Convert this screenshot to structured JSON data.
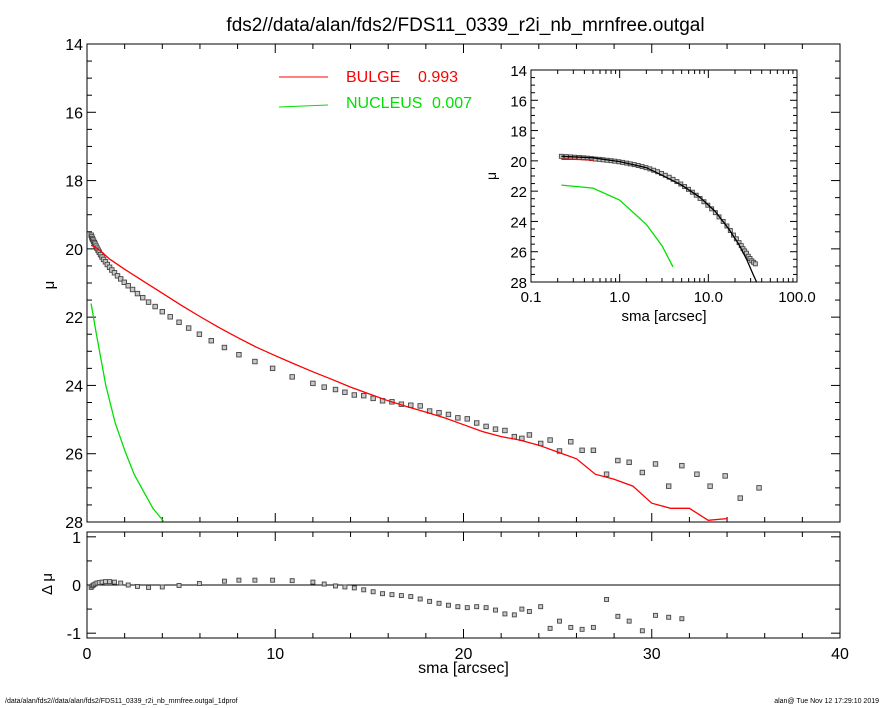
{
  "chart_data": [
    {
      "type": "scatter",
      "panel": "main",
      "title": "fds2//data/alan/fds2/FDS11_0339_r2i_nb_mrnfree.outgal",
      "xlabel": "",
      "ylabel": "μ",
      "xlim": [
        0,
        40
      ],
      "ylim": [
        28,
        14
      ],
      "y_inverted": true,
      "yticks": [
        14,
        16,
        18,
        20,
        22,
        24,
        26,
        28
      ],
      "legend": {
        "placement": "top-center",
        "entries": [
          {
            "name": "BULGE",
            "value": "0.993",
            "color": "#ff0000"
          },
          {
            "name": "NUCLEUS",
            "value": "0.007",
            "color": "#00e000"
          }
        ]
      },
      "observed": {
        "marker": "square",
        "x": [
          0.22,
          0.25,
          0.28,
          0.31,
          0.35,
          0.39,
          0.43,
          0.48,
          0.53,
          0.59,
          0.65,
          0.72,
          0.8,
          0.88,
          0.98,
          1.08,
          1.2,
          1.32,
          1.46,
          1.62,
          1.79,
          1.98,
          2.19,
          2.42,
          2.68,
          2.96,
          3.27,
          3.62,
          4.0,
          4.42,
          4.89,
          5.4,
          5.97,
          6.6,
          7.3,
          8.07,
          8.92,
          9.86,
          10.9,
          12.0,
          12.6,
          13.2,
          13.7,
          14.2,
          14.7,
          15.2,
          15.7,
          16.2,
          16.7,
          17.2,
          17.7,
          18.2,
          18.7,
          19.2,
          19.7,
          20.2,
          20.7,
          21.2,
          21.7,
          22.2,
          22.7,
          23.1,
          23.5,
          24.1,
          24.6,
          25.1,
          25.7,
          26.3,
          26.9,
          27.6,
          28.2,
          28.8,
          29.5,
          30.2,
          30.9,
          31.6,
          32.4,
          33.1,
          33.9,
          34.7,
          35.7
        ],
        "y": [
          19.6,
          19.65,
          19.7,
          19.73,
          19.78,
          19.82,
          19.86,
          19.92,
          19.98,
          20.04,
          20.1,
          20.17,
          20.24,
          20.31,
          20.38,
          20.46,
          20.54,
          20.62,
          20.7,
          20.79,
          20.88,
          20.98,
          21.08,
          21.19,
          21.31,
          21.43,
          21.56,
          21.69,
          21.84,
          21.99,
          22.15,
          22.32,
          22.5,
          22.69,
          22.89,
          23.1,
          23.3,
          23.5,
          23.75,
          23.94,
          24.05,
          24.12,
          24.2,
          24.28,
          24.3,
          24.38,
          24.45,
          24.48,
          24.55,
          24.58,
          24.6,
          24.75,
          24.8,
          24.85,
          24.95,
          24.98,
          25.1,
          25.2,
          25.28,
          25.32,
          25.5,
          25.55,
          25.45,
          25.7,
          25.6,
          25.92,
          25.65,
          25.9,
          25.9,
          26.6,
          26.2,
          26.25,
          26.55,
          26.3,
          26.95,
          26.35,
          26.6,
          26.95,
          26.65,
          27.3,
          27.0
        ]
      },
      "bulge": {
        "color": "#ff0000",
        "x": [
          0.22,
          0.4,
          0.8,
          1.2,
          2.0,
          3.0,
          4.0,
          5.0,
          6.0,
          7.0,
          8.0,
          9.0,
          10.0,
          11.0,
          12.0,
          13.0,
          14.0,
          15.0,
          16.0,
          17.0,
          18.0,
          19.0,
          20.0,
          21.0,
          22.0,
          23.0,
          24.0,
          25.0,
          26.0,
          27.0,
          28.0,
          29.0,
          30.0,
          31.0,
          32.0,
          33.0,
          34.0
        ],
        "y": [
          19.9,
          19.93,
          20.1,
          20.3,
          20.6,
          20.95,
          21.3,
          21.65,
          21.98,
          22.3,
          22.6,
          22.88,
          23.13,
          23.37,
          23.6,
          23.82,
          24.05,
          24.25,
          24.45,
          24.62,
          24.78,
          24.95,
          25.15,
          25.35,
          25.5,
          25.6,
          25.75,
          25.95,
          26.15,
          26.6,
          26.75,
          26.95,
          27.45,
          27.6,
          27.6,
          27.95,
          27.9
        ]
      },
      "nucleus": {
        "color": "#00e000",
        "x": [
          0.22,
          0.5,
          1.0,
          1.5,
          2.0,
          2.5,
          3.0,
          3.5,
          4.1
        ],
        "y": [
          21.6,
          22.5,
          24.0,
          25.1,
          25.9,
          26.6,
          27.1,
          27.6,
          28.0
        ]
      }
    },
    {
      "type": "scatter",
      "panel": "inset",
      "xlabel": "sma [arcsec]",
      "ylabel": "μ",
      "x_scale": "log",
      "xlim": [
        0.1,
        100
      ],
      "xticks": [
        "0.1",
        "1.0",
        "10.0",
        "100.0"
      ],
      "ylim": [
        28,
        14
      ],
      "y_inverted": true,
      "yticks": [
        14,
        16,
        18,
        20,
        22,
        24,
        26,
        28
      ],
      "observed_x": [
        0.22,
        0.25,
        0.28,
        0.31,
        0.35,
        0.39,
        0.43,
        0.48,
        0.53,
        0.59,
        0.65,
        0.72,
        0.8,
        0.88,
        0.98,
        1.08,
        1.2,
        1.32,
        1.46,
        1.62,
        1.79,
        1.98,
        2.19,
        2.42,
        2.68,
        2.96,
        3.27,
        3.62,
        4.0,
        4.42,
        4.89,
        5.4,
        5.97,
        6.6,
        7.3,
        8.07,
        8.92,
        9.86,
        10.9,
        12.0,
        13.2,
        14.7,
        16.2,
        17.7,
        19.2,
        20.7,
        22.2,
        23.5,
        24.6,
        25.7,
        26.9,
        28.2,
        29.5,
        30.9,
        32.4,
        33.9
      ],
      "observed_y": [
        19.7,
        19.72,
        19.74,
        19.76,
        19.78,
        19.8,
        19.82,
        19.85,
        19.88,
        19.9,
        19.93,
        19.96,
        19.99,
        20.02,
        20.06,
        20.1,
        20.15,
        20.2,
        20.25,
        20.31,
        20.38,
        20.45,
        20.53,
        20.62,
        20.72,
        20.83,
        20.95,
        21.08,
        21.22,
        21.37,
        21.53,
        21.7,
        21.88,
        22.07,
        22.27,
        22.48,
        22.7,
        22.93,
        23.17,
        23.42,
        23.7,
        24.0,
        24.3,
        24.6,
        24.9,
        25.15,
        25.4,
        25.6,
        25.8,
        25.95,
        26.1,
        26.3,
        26.45,
        26.6,
        26.7,
        26.8
      ],
      "total_x": [
        0.22,
        0.5,
        1.0,
        2.0,
        3.0,
        5.0,
        8.0,
        12.0,
        17.0,
        22.0,
        27.0,
        32.0,
        35.0
      ],
      "total_y": [
        19.7,
        19.8,
        20.05,
        20.45,
        20.95,
        21.6,
        22.4,
        23.35,
        24.5,
        25.5,
        26.5,
        27.5,
        28.0
      ],
      "bulge_x": [
        0.22,
        0.3,
        0.4,
        0.5
      ],
      "bulge_y": [
        19.9,
        19.9,
        19.92,
        19.95
      ],
      "nucleus_x": [
        0.22,
        0.5,
        1.0,
        2.0,
        3.0,
        4.0
      ],
      "nucleus_y": [
        21.6,
        21.8,
        22.6,
        24.2,
        25.6,
        27.0
      ]
    },
    {
      "type": "scatter",
      "panel": "residual",
      "xlabel": "sma [arcsec]",
      "ylabel": "Δ μ",
      "xlim": [
        0,
        40
      ],
      "xticks": [
        0,
        10,
        20,
        30,
        40
      ],
      "ylim": [
        -1.1,
        1.1
      ],
      "yticks": [
        1,
        0,
        -1
      ],
      "zero_line": true,
      "x": [
        0.22,
        0.28,
        0.35,
        0.43,
        0.53,
        0.65,
        0.8,
        0.98,
        1.2,
        1.46,
        1.79,
        2.19,
        2.68,
        3.27,
        4.0,
        4.89,
        5.97,
        7.3,
        8.07,
        8.92,
        9.86,
        10.9,
        12.0,
        12.6,
        13.2,
        13.7,
        14.2,
        14.7,
        15.2,
        15.7,
        16.2,
        16.7,
        17.2,
        17.7,
        18.2,
        18.7,
        19.2,
        19.7,
        20.2,
        20.7,
        21.2,
        21.7,
        22.2,
        22.7,
        23.1,
        23.5,
        24.1,
        24.6,
        25.1,
        25.7,
        26.3,
        26.9,
        27.6,
        28.2,
        28.8,
        29.5,
        30.2,
        30.9,
        31.6
      ],
      "y": [
        -0.05,
        -0.02,
        0.0,
        0.02,
        0.04,
        0.05,
        0.06,
        0.07,
        0.07,
        0.06,
        0.04,
        0.0,
        -0.03,
        -0.05,
        -0.04,
        -0.01,
        0.03,
        0.08,
        0.1,
        0.1,
        0.1,
        0.09,
        0.06,
        0.02,
        -0.02,
        -0.04,
        -0.06,
        -0.1,
        -0.14,
        -0.18,
        -0.2,
        -0.22,
        -0.24,
        -0.29,
        -0.34,
        -0.38,
        -0.42,
        -0.45,
        -0.47,
        -0.45,
        -0.47,
        -0.52,
        -0.6,
        -0.62,
        -0.5,
        -0.55,
        -0.45,
        -0.9,
        -0.75,
        -0.88,
        -0.92,
        -0.88,
        -0.3,
        -0.65,
        -0.75,
        -0.95,
        -0.63,
        -0.67,
        -0.7
      ]
    }
  ],
  "footer": {
    "left": "/data/alan/fds2//data/alan/fds2/FDS11_0339_r2i_nb_mrnfree.outgal_1dprof",
    "right": "alan@  Tue Nov 12 17:29:10 2019"
  }
}
